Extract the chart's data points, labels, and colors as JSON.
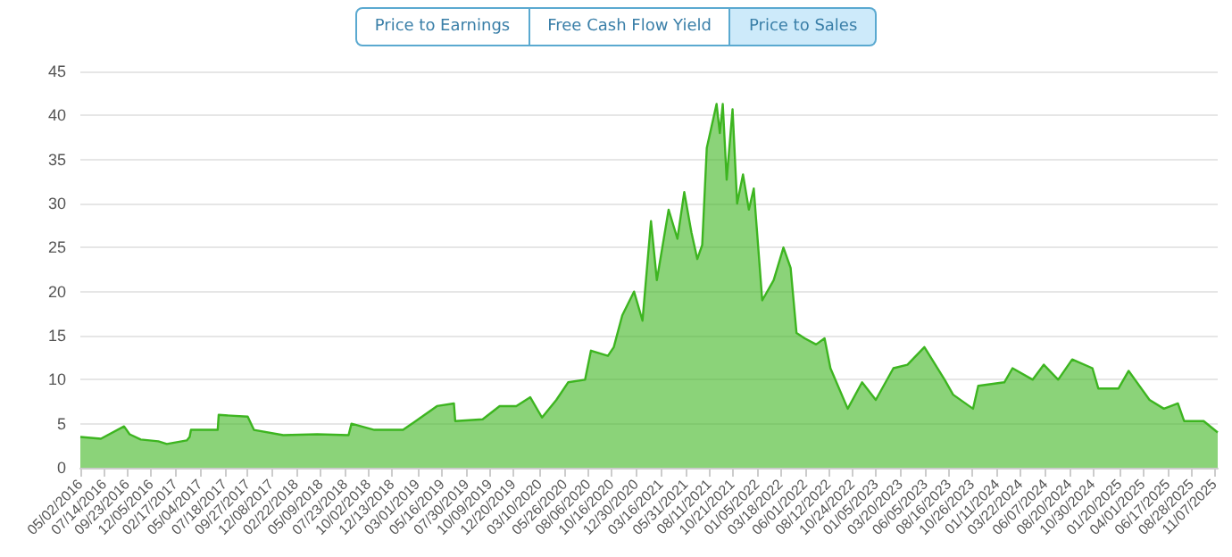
{
  "chart_data": {
    "type": "area",
    "annotations": [
      "Price to Earnings",
      "Free Cash Flow Yield",
      "Price to Sales"
    ],
    "x": [
      "2016-05-02",
      "2016-07-04",
      "2016-09-13",
      "2016-09-30",
      "2016-11-03",
      "2016-12-27",
      "2017-01-22",
      "2017-03-24",
      "2017-04-02",
      "2017-04-06",
      "2017-06-27",
      "2017-06-30",
      "2017-09-27",
      "2017-10-16",
      "2018-01-14",
      "2018-04-28",
      "2018-08-02",
      "2018-08-11",
      "2018-10-20",
      "2019-01-16",
      "2019-02-20",
      "2019-04-30",
      "2019-06-21",
      "2019-06-25",
      "2019-09-17",
      "2019-11-08",
      "2019-12-29",
      "2020-02-10",
      "2020-03-17",
      "2020-04-30",
      "2020-06-05",
      "2020-07-27",
      "2020-08-14",
      "2020-10-05",
      "2020-10-23",
      "2020-11-18",
      "2020-12-24",
      "2021-01-19",
      "2021-02-14",
      "2021-03-04",
      "2021-04-09",
      "2021-05-06",
      "2021-05-27",
      "2021-06-18",
      "2021-07-06",
      "2021-07-21",
      "2021-08-04",
      "2021-09-03",
      "2021-09-13",
      "2021-09-22",
      "2021-10-04",
      "2021-10-22",
      "2021-11-05",
      "2021-11-23",
      "2021-12-11",
      "2021-12-26",
      "2022-01-21",
      "2022-02-25",
      "2022-03-27",
      "2022-04-18",
      "2022-05-06",
      "2022-05-31",
      "2022-07-05",
      "2022-07-31",
      "2022-08-18",
      "2022-10-10",
      "2022-11-23",
      "2023-01-04",
      "2023-02-27",
      "2023-04-11",
      "2023-06-02",
      "2023-08-03",
      "2023-08-29",
      "2023-10-29",
      "2023-11-14",
      "2024-02-02",
      "2024-02-27",
      "2024-04-29",
      "2024-06-02",
      "2024-07-16",
      "2024-08-28",
      "2024-10-29",
      "2024-11-16",
      "2025-01-17",
      "2025-02-17",
      "2025-04-22",
      "2025-06-05",
      "2025-07-18",
      "2025-08-06",
      "2025-10-05",
      "2025-11-17"
    ],
    "series": [
      {
        "color": "#3db520",
        "values": [
          3.5,
          3.3,
          4.7,
          3.8,
          3.2,
          3.0,
          2.7,
          3.1,
          3.5,
          4.3,
          4.3,
          6.0,
          5.8,
          4.3,
          3.7,
          3.8,
          3.7,
          5.0,
          4.3,
          4.3,
          5.2,
          7.0,
          7.3,
          5.3,
          5.5,
          7.0,
          7.0,
          8.0,
          5.7,
          7.7,
          9.7,
          10,
          13.3,
          12.7,
          13.7,
          17.3,
          20,
          16.7,
          28,
          21.3,
          29.3,
          26,
          31.3,
          26.7,
          23.7,
          25.3,
          36.3,
          41.3,
          38,
          41.3,
          32.7,
          40.7,
          30,
          33.3,
          29.3,
          31.7,
          19,
          21.3,
          25,
          22.7,
          15.3,
          14.7,
          14,
          14.7,
          11.3,
          6.7,
          9.7,
          7.7,
          11.3,
          11.7,
          13.7,
          10,
          8.3,
          6.7,
          9.3,
          9.7,
          11.3,
          10,
          11.7,
          10,
          12.3,
          11.3,
          9,
          9,
          11,
          7.7,
          6.7,
          7.3,
          5.3,
          5.3,
          4
        ]
      }
    ],
    "xlim": [
      "2016-05-02",
      "2025-11-17"
    ],
    "xticks": [
      {
        "value": "2016-05-02",
        "label": "05/02/2016"
      },
      {
        "value": "2016-07-14",
        "label": "07/14/2016"
      },
      {
        "value": "2016-09-23",
        "label": "09/23/2016"
      },
      {
        "value": "2016-12-05",
        "label": "12/05/2016"
      },
      {
        "value": "2017-02-17",
        "label": "02/17/2017"
      },
      {
        "value": "2017-05-04",
        "label": "05/04/2017"
      },
      {
        "value": "2017-07-18",
        "label": "07/18/2017"
      },
      {
        "value": "2017-09-27",
        "label": "09/27/2017"
      },
      {
        "value": "2017-12-08",
        "label": "12/08/2017"
      },
      {
        "value": "2018-02-22",
        "label": "02/22/2018"
      },
      {
        "value": "2018-05-09",
        "label": "05/09/2018"
      },
      {
        "value": "2018-07-23",
        "label": "07/23/2018"
      },
      {
        "value": "2018-10-02",
        "label": "10/02/2018"
      },
      {
        "value": "2018-12-13",
        "label": "12/13/2018"
      },
      {
        "value": "2019-03-01",
        "label": "03/01/2019"
      },
      {
        "value": "2019-05-16",
        "label": "05/16/2019"
      },
      {
        "value": "2019-07-30",
        "label": "07/30/2019"
      },
      {
        "value": "2019-10-09",
        "label": "10/09/2019"
      },
      {
        "value": "2019-12-20",
        "label": "12/20/2019"
      },
      {
        "value": "2020-03-10",
        "label": "03/10/2020"
      },
      {
        "value": "2020-05-26",
        "label": "05/26/2020"
      },
      {
        "value": "2020-08-06",
        "label": "08/06/2020"
      },
      {
        "value": "2020-10-16",
        "label": "10/16/2020"
      },
      {
        "value": "2020-12-30",
        "label": "12/30/2020"
      },
      {
        "value": "2021-03-16",
        "label": "03/16/2021"
      },
      {
        "value": "2021-05-31",
        "label": "05/31/2021"
      },
      {
        "value": "2021-08-11",
        "label": "08/11/2021"
      },
      {
        "value": "2021-10-21",
        "label": "10/21/2021"
      },
      {
        "value": "2022-01-05",
        "label": "01/05/2022"
      },
      {
        "value": "2022-03-18",
        "label": "03/18/2022"
      },
      {
        "value": "2022-06-01",
        "label": "06/01/2022"
      },
      {
        "value": "2022-08-12",
        "label": "08/12/2022"
      },
      {
        "value": "2022-10-24",
        "label": "10/24/2022"
      },
      {
        "value": "2023-01-05",
        "label": "01/05/2023"
      },
      {
        "value": "2023-03-20",
        "label": "03/20/2023"
      },
      {
        "value": "2023-06-05",
        "label": "06/05/2023"
      },
      {
        "value": "2023-08-16",
        "label": "08/16/2023"
      },
      {
        "value": "2023-10-26",
        "label": "10/26/2023"
      },
      {
        "value": "2024-01-11",
        "label": "01/11/2024"
      },
      {
        "value": "2024-03-22",
        "label": "03/22/2024"
      },
      {
        "value": "2024-06-07",
        "label": "06/07/2024"
      },
      {
        "value": "2024-08-20",
        "label": "08/20/2024"
      },
      {
        "value": "2024-10-30",
        "label": "10/30/2024"
      },
      {
        "value": "2025-01-20",
        "label": "01/20/2025"
      },
      {
        "value": "2025-04-01",
        "label": "04/01/2025"
      },
      {
        "value": "2025-06-17",
        "label": "06/17/2025"
      },
      {
        "value": "2025-08-28",
        "label": "08/28/2025"
      },
      {
        "value": "2025-11-07",
        "label": "11/07/2025"
      }
    ],
    "ylim": [
      0,
      45
    ],
    "yticks": [
      0,
      5,
      10,
      15,
      20,
      25,
      30,
      35,
      40,
      45
    ],
    "grid": "y",
    "marker": "none",
    "line_style": "solid"
  }
}
